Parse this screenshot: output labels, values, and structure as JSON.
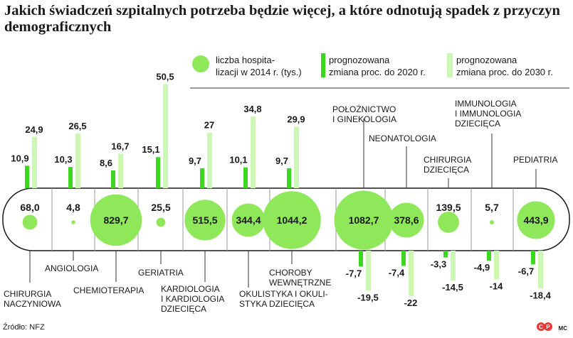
{
  "title": "Jakich świadczeń szpitalnych potrzeba będzie więcej, a które odnotują spadek z przyczyn demograficznych",
  "legend": {
    "bubble": "liczba hospita-\nlizacji w 2014 r. (tys.)",
    "bar2020": "prognozowana\nzmiana proc. do 2020 r.",
    "bar2030": "prognozowana\nzmiana proc. do 2030 r."
  },
  "colors": {
    "bubble": "#8fe85a",
    "bar2020": "#3cd820",
    "bar2030": "#cdf7b4",
    "band": "#ffffff",
    "band_stroke": "#1a1a1a",
    "text": "#1a1a1a"
  },
  "footer": {
    "source": "Źródło: NFZ",
    "credit": "MC"
  },
  "chart_data": {
    "type": "bubble-bar",
    "categories": [
      "CHIRURGIA\nNACZYNIOWA",
      "ANGIOLOGIA",
      "CHEMIOTERAPIA",
      "GERIATRIA",
      "KARDIOLOGIA\nI KARDIOLOGIA\nDZIECIĘCA",
      "OKULISTYKA I OKULI-\nSTYKA DZIECIĘCA",
      "CHOROBY\nWEWNĘTRZNE",
      "POŁOŻNICTWO\nI GINEKOLOGIA",
      "NEONATOLOGIA",
      "CHIRURGIA\nDZIECIĘCA",
      "IMMUNOLOGIA\nI IMMUNOLOGIA\nDZIECIĘCA",
      "PEDIATRIA"
    ],
    "series": [
      {
        "name": "liczba hospitalizacji w 2014 r. (tys.)",
        "values": [
          68.0,
          4.8,
          829.7,
          25.5,
          515.5,
          344.4,
          1044.2,
          1082.7,
          378.6,
          139.5,
          5.7,
          443.9
        ],
        "labels": [
          "68,0",
          "4,8",
          "829,7",
          "25,5",
          "515,5",
          "344,4",
          "1044,2",
          "1082,7",
          "378,6",
          "139,5",
          "5,7",
          "443,9"
        ]
      },
      {
        "name": "prognozowana zmiana proc. do 2020 r.",
        "values": [
          10.9,
          10.3,
          8.6,
          15.1,
          9.7,
          10.1,
          9.7,
          -7.7,
          -7.4,
          -3.3,
          -4.9,
          -6.7
        ],
        "labels": [
          "10,9",
          "10,3",
          "8,6",
          "15,1",
          "9,7",
          "10,1",
          "9,7",
          "-7,7",
          "-7,4",
          "-3,3",
          "-4,9",
          "-6,7"
        ]
      },
      {
        "name": "prognozowana zmiana proc. do 2030 r.",
        "values": [
          24.9,
          26.5,
          16.7,
          50.5,
          27,
          34.8,
          29.9,
          -19.5,
          -22,
          -14.5,
          -14,
          -18.4
        ],
        "labels": [
          "24,9",
          "26,5",
          "16,7",
          "50,5",
          "27",
          "34,8",
          "29,9",
          "-19,5",
          "-22",
          "-14,5",
          "-14",
          "-18,4"
        ]
      }
    ]
  }
}
